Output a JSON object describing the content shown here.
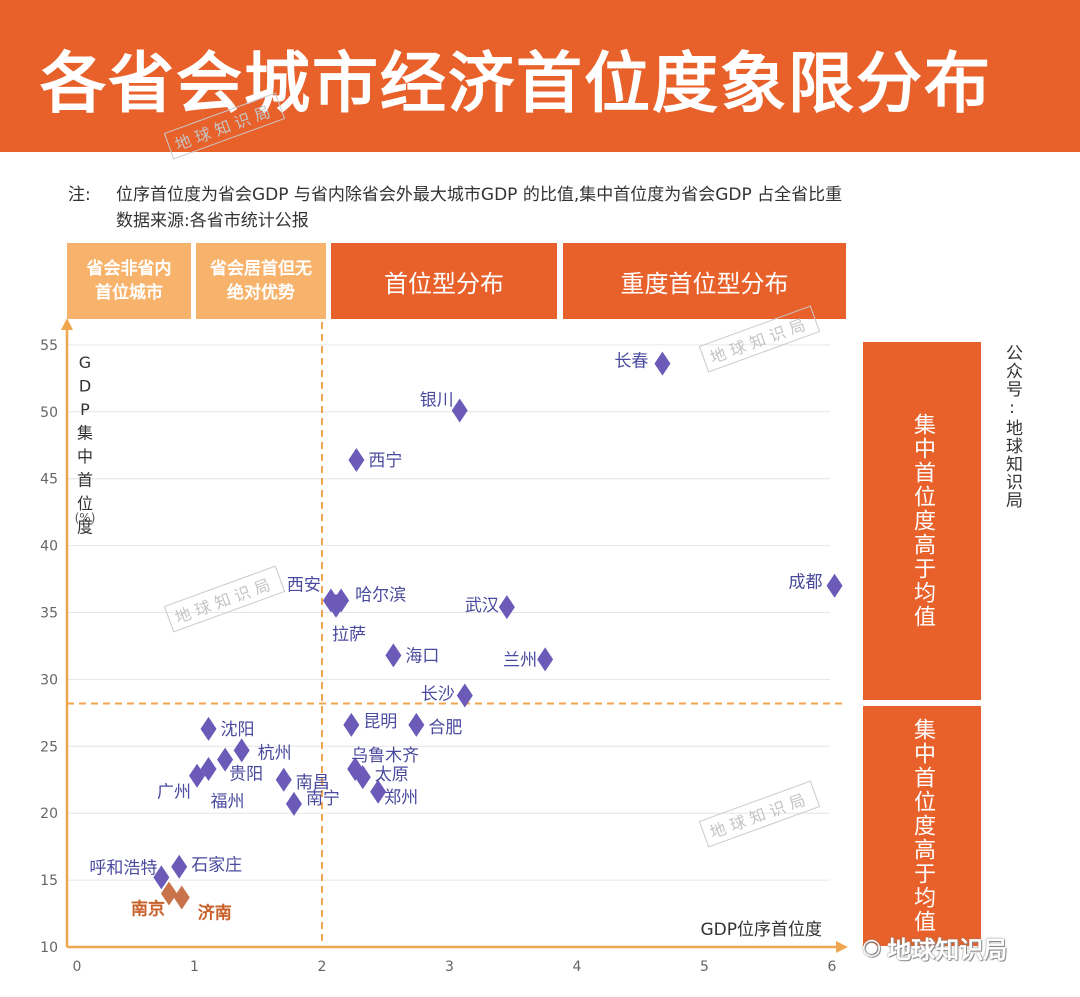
{
  "header": {
    "title": "各省会城市经济首位度象限分布"
  },
  "watermark": "地球知识局",
  "note": {
    "label": "注:",
    "line1": "位序首位度为省会GDP 与省内除省会外最大城市GDP 的比值,集中首位度为省会GDP 占全省比重",
    "line2": "数据来源:各省市统计公报"
  },
  "categories": {
    "c1": "省会非省内首位城市",
    "c2": "省会居首但无绝对优势",
    "c3": "首位型分布",
    "c4": "重度首位型分布"
  },
  "side": {
    "upper": "集中首位度高于均值",
    "lower": "集中首位度高于均值"
  },
  "public_account": "公众号:地球知识局",
  "brand": "地球知识局",
  "chart_data": {
    "type": "scatter",
    "xlabel": "GDP位序首位度",
    "ylabel": "GDP集中首位度",
    "ylabel_unit": "(%)",
    "xlim": [
      0,
      6
    ],
    "ylim": [
      10,
      55
    ],
    "x_ticks": [
      "0",
      "1",
      "2",
      "3",
      "4",
      "5",
      "6"
    ],
    "y_ticks": [
      "10",
      "15",
      "20",
      "25",
      "30",
      "35",
      "40",
      "45",
      "50",
      "55"
    ],
    "x_threshold": 2.0,
    "y_threshold": 28.2,
    "points": [
      {
        "name": "长春",
        "x": 4.67,
        "y": 53.6,
        "color": "#6b5ab8"
      },
      {
        "name": "银川",
        "x": 3.08,
        "y": 50.1,
        "color": "#6b5ab8"
      },
      {
        "name": "西宁",
        "x": 2.27,
        "y": 46.4,
        "color": "#6b5ab8"
      },
      {
        "name": "成都",
        "x": 6.02,
        "y": 37.0,
        "color": "#6b5ab8"
      },
      {
        "name": "西安",
        "x": 2.07,
        "y": 35.9,
        "color": "#6b5ab8"
      },
      {
        "name": "哈尔滨",
        "x": 2.15,
        "y": 35.9,
        "color": "#6b5ab8"
      },
      {
        "name": "拉萨",
        "x": 2.11,
        "y": 35.5,
        "color": "#6b5ab8"
      },
      {
        "name": "武汉",
        "x": 3.45,
        "y": 35.4,
        "color": "#6b5ab8"
      },
      {
        "name": "海口",
        "x": 2.56,
        "y": 31.8,
        "color": "#6b5ab8"
      },
      {
        "name": "兰州",
        "x": 3.75,
        "y": 31.5,
        "color": "#6b5ab8"
      },
      {
        "name": "长沙",
        "x": 3.12,
        "y": 28.8,
        "color": "#6b5ab8"
      },
      {
        "name": "昆明",
        "x": 2.23,
        "y": 26.6,
        "color": "#6b5ab8"
      },
      {
        "name": "合肥",
        "x": 2.74,
        "y": 26.6,
        "color": "#6b5ab8"
      },
      {
        "name": "沈阳",
        "x": 1.11,
        "y": 26.3,
        "color": "#6b5ab8"
      },
      {
        "name": "杭州",
        "x": 1.37,
        "y": 24.7,
        "color": "#6b5ab8"
      },
      {
        "name": "乌鲁木齐",
        "x": 2.26,
        "y": 23.3,
        "color": "#6b5ab8"
      },
      {
        "name": "太原",
        "x": 2.32,
        "y": 22.7,
        "color": "#6b5ab8"
      },
      {
        "name": "郑州",
        "x": 2.44,
        "y": 21.6,
        "color": "#6b5ab8"
      },
      {
        "name": "贵阳",
        "x": 1.24,
        "y": 24.0,
        "color": "#6b5ab8"
      },
      {
        "name": "南昌",
        "x": 1.7,
        "y": 22.5,
        "color": "#6b5ab8"
      },
      {
        "name": "南宁",
        "x": 1.78,
        "y": 20.7,
        "color": "#6b5ab8"
      },
      {
        "name": "广州",
        "x": 1.02,
        "y": 22.8,
        "color": "#6b5ab8"
      },
      {
        "name": "福州",
        "x": 1.11,
        "y": 23.3,
        "color": "#6b5ab8"
      },
      {
        "name": "石家庄",
        "x": 0.88,
        "y": 16.0,
        "color": "#6b5ab8"
      },
      {
        "name": "呼和浩特",
        "x": 0.74,
        "y": 15.2,
        "color": "#6b5ab8"
      },
      {
        "name": "南京",
        "x": 0.8,
        "y": 14.0,
        "color": "#c8734a"
      },
      {
        "name": "济南",
        "x": 0.9,
        "y": 13.7,
        "color": "#c8734a"
      }
    ]
  }
}
